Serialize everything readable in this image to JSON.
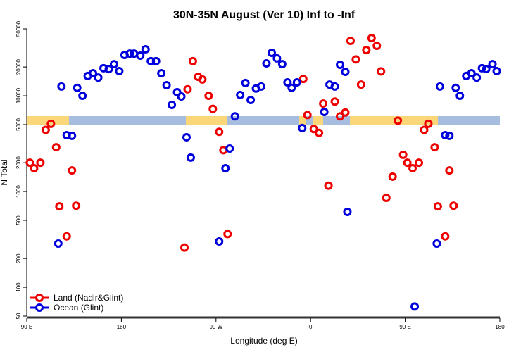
{
  "chart_data": {
    "type": "scatter",
    "title": "30N-35N August (Ver 10)   Inf to -Inf",
    "x_label": "Longitude (deg E)",
    "y_label": "N Total",
    "xlim": [
      90,
      540
    ],
    "xticks": [
      {
        "value": 90,
        "label": "90 E"
      },
      180,
      {
        "value": 270,
        "label": "90 W"
      },
      {
        "value": 360,
        "label": "0"
      },
      {
        "value": 450,
        "label": "90 E"
      },
      {
        "value": 540,
        "label": "180"
      }
    ],
    "ylim": [
      50,
      50000
    ],
    "y_log": true,
    "yticks": [
      50,
      100,
      200,
      500,
      1000,
      2000,
      5000,
      10000,
      20000,
      50000
    ],
    "legend": "lower left",
    "series": [
      {
        "name": "Land (Nadir&Glint)",
        "color": "#ee0000",
        "x": [
          93,
          97,
          103,
          108,
          113,
          118,
          121,
          128,
          133,
          137,
          240,
          243,
          248,
          253,
          257,
          263,
          267,
          273,
          277,
          281,
          353,
          357,
          363,
          368,
          372,
          377,
          383,
          388,
          393,
          398,
          403,
          408,
          413,
          418,
          423,
          427,
          432,
          438,
          443,
          448,
          452,
          457,
          463,
          468,
          472,
          478,
          481,
          488,
          492,
          496
        ],
        "values": [
          2000,
          1750,
          2000,
          4400,
          5100,
          2900,
          700,
          340,
          1660,
          710,
          260,
          11700,
          23000,
          15800,
          14800,
          10000,
          7300,
          4200,
          2700,
          360,
          15000,
          6300,
          4500,
          4100,
          8300,
          1150,
          8700,
          6100,
          6700,
          37500,
          24000,
          13100,
          30000,
          40000,
          33300,
          18000,
          860,
          1430,
          5500,
          2420,
          2000,
          1750,
          2000,
          4400,
          5100,
          2900,
          700,
          340,
          1660,
          710
        ]
      },
      {
        "name": "Ocean (Glint)",
        "color": "#0000dd",
        "x": [
          120,
          123,
          128,
          133,
          138,
          143,
          148,
          153,
          158,
          163,
          168,
          173,
          178,
          183,
          188,
          192,
          198,
          203,
          208,
          213,
          218,
          223,
          228,
          233,
          237,
          242,
          246,
          273,
          279,
          283,
          288,
          293,
          298,
          303,
          308,
          313,
          318,
          323,
          328,
          333,
          338,
          342,
          347,
          352,
          373,
          378,
          383,
          388,
          393,
          395,
          459,
          480,
          483,
          488,
          492,
          498,
          502,
          508,
          513,
          518,
          523,
          527,
          533,
          537
        ],
        "values": [
          286,
          12500,
          3880,
          3820,
          12100,
          10000,
          16100,
          17200,
          15500,
          19400,
          19000,
          21400,
          18100,
          26700,
          27600,
          27600,
          26300,
          30600,
          23000,
          23000,
          17200,
          12900,
          8030,
          10900,
          9840,
          3690,
          2260,
          301,
          1750,
          2810,
          6100,
          10200,
          13600,
          9040,
          11900,
          12500,
          21800,
          28100,
          24600,
          21400,
          13800,
          12100,
          13800,
          4600,
          6780,
          13100,
          12500,
          21100,
          17800,
          613,
          63,
          286,
          12500,
          3880,
          3820,
          12100,
          10000,
          16100,
          17200,
          15500,
          19400,
          19000,
          21400,
          18100
        ]
      }
    ]
  }
}
